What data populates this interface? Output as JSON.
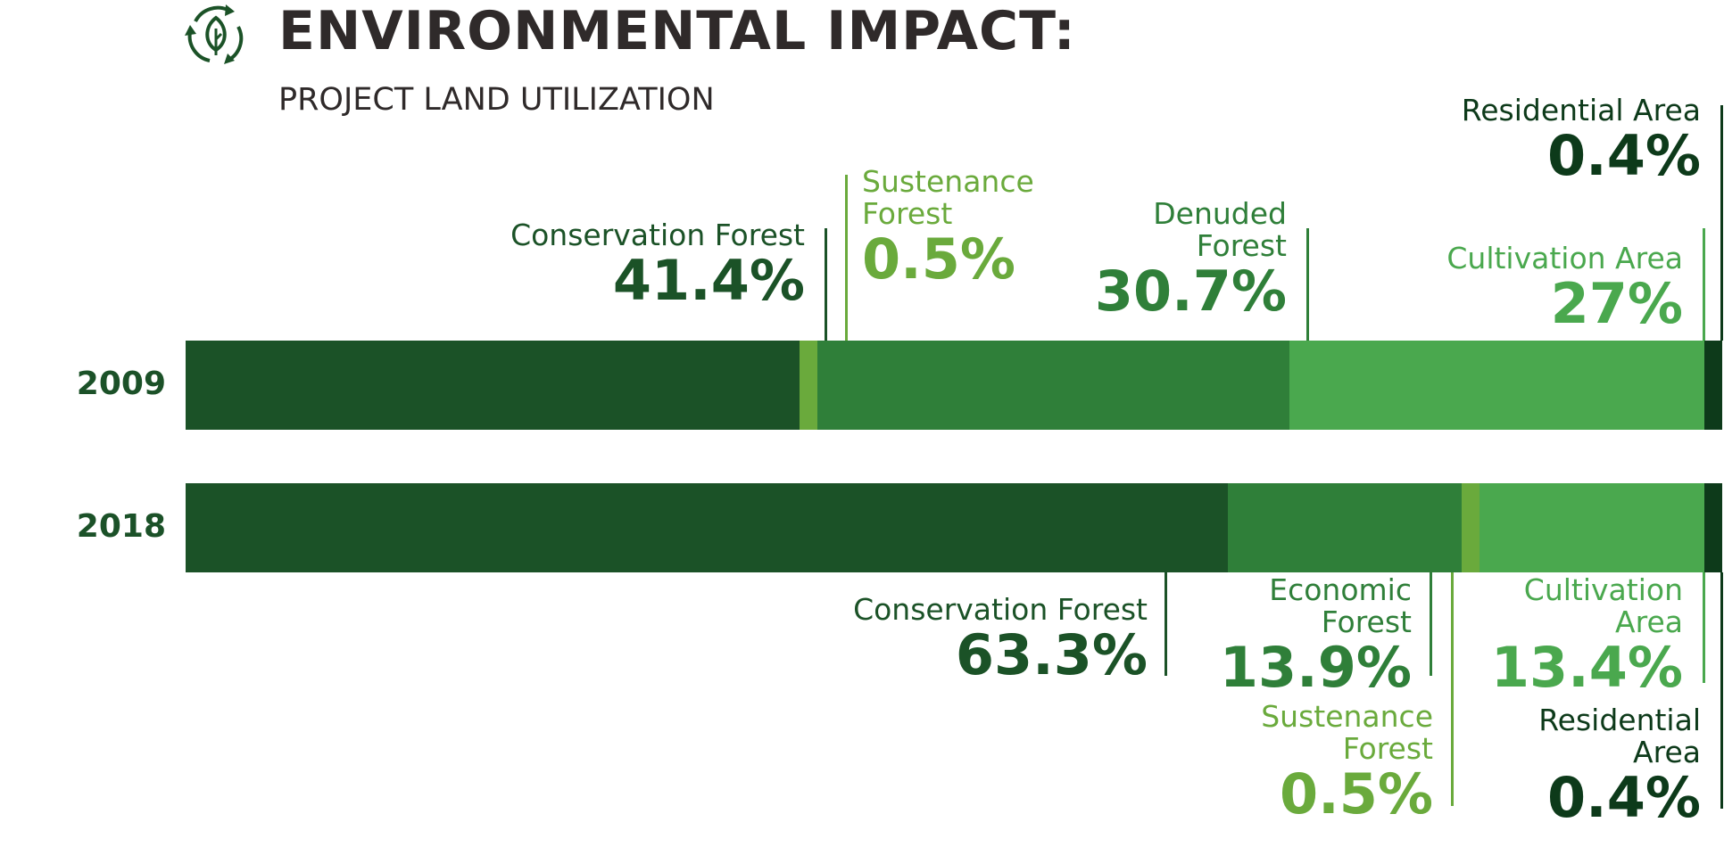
{
  "header": {
    "title": "ENVIRONMENTAL IMPACT:",
    "subtitle": "PROJECT LAND UTILIZATION",
    "icon": "leaf-recycle-icon"
  },
  "colors": {
    "dark": "#1b5227",
    "medium": "#2f7f39",
    "light": "#4aa84e",
    "lime": "#6aaa3c",
    "darkest": "#0d3a1a"
  },
  "chart_data": {
    "type": "bar",
    "stacked": true,
    "orientation": "horizontal",
    "categories": [
      "2009",
      "2018"
    ],
    "series_2009": [
      {
        "name": "Conservation Forest",
        "value": 41.4,
        "label": "41.4%"
      },
      {
        "name": "Sustenance Forest",
        "value": 0.5,
        "label": "0.5%"
      },
      {
        "name": "Denuded Forest",
        "value": 30.7,
        "label": "30.7%"
      },
      {
        "name": "Cultivation Area",
        "value": 27,
        "label": "27%"
      },
      {
        "name": "Residential Area",
        "value": 0.4,
        "label": "0.4%"
      }
    ],
    "series_2018": [
      {
        "name": "Conservation Forest",
        "value": 63.3,
        "label": "63.3%"
      },
      {
        "name": "Economic Forest",
        "value": 13.9,
        "label": "13.9%"
      },
      {
        "name": "Sustenance Forest",
        "value": 0.5,
        "label": "0.5%"
      },
      {
        "name": "Cultivation Area",
        "value": 13.4,
        "label": "13.4%"
      },
      {
        "name": "Residential Area",
        "value": 0.4,
        "label": "0.4%"
      }
    ],
    "labels_2009": {
      "conservation": {
        "name": "Conservation Forest"
      },
      "sustenance": {
        "name_1": "Sustenance",
        "name_2": "Forest"
      },
      "denuded": {
        "name_1": "Denuded",
        "name_2": "Forest"
      },
      "cultivation": {
        "name": "Cultivation Area"
      },
      "residential": {
        "name": "Residential Area"
      }
    },
    "labels_2018": {
      "conservation": {
        "name": "Conservation Forest"
      },
      "economic": {
        "name_1": "Economic",
        "name_2": "Forest"
      },
      "cultivation": {
        "name_1": "Cultivation",
        "name_2": "Area"
      },
      "sustenance": {
        "name_1": "Sustenance",
        "name_2": "Forest"
      },
      "residential": {
        "name_1": "Residential",
        "name_2": "Area"
      }
    }
  }
}
